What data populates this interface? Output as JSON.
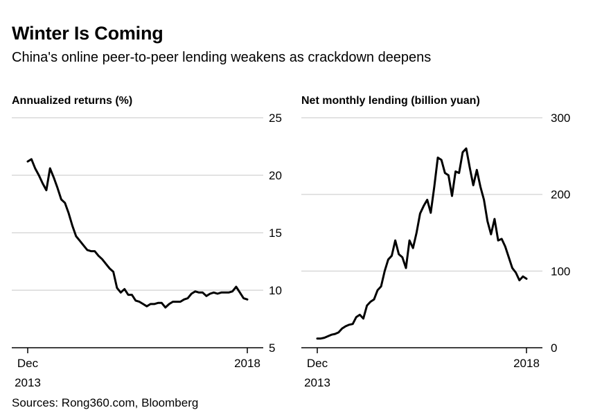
{
  "title": "Winter Is Coming",
  "subtitle": "China's online peer-to-peer lending weakens as crackdown deepens",
  "source": "Sources: Rong360.com, Bloomberg",
  "colors": {
    "line": "#000000",
    "grid": "#d9d9d9",
    "axis": "#000000",
    "text": "#000000",
    "background": "#ffffff"
  },
  "chart_data": [
    {
      "type": "line",
      "title": "Annualized returns (%)",
      "xlabel": "",
      "ylabel": "",
      "x_start": 2013.917,
      "x_end": 2018.0,
      "xlim": [
        2013.917,
        2018.25
      ],
      "ylim": [
        5,
        25
      ],
      "yticks": [
        5,
        10,
        15,
        20,
        25
      ],
      "grid": true,
      "xtick_labels": [
        {
          "x": 2013.917,
          "line1": "Dec",
          "line2": "2013"
        },
        {
          "x": 2018.0,
          "line1": "2018",
          "line2": ""
        }
      ],
      "values": [
        21.2,
        21.4,
        20.6,
        20.0,
        19.3,
        18.7,
        20.6,
        19.8,
        18.9,
        17.9,
        17.6,
        16.7,
        15.6,
        14.7,
        14.3,
        13.9,
        13.5,
        13.4,
        13.4,
        13.0,
        12.7,
        12.3,
        11.9,
        11.6,
        10.2,
        9.8,
        10.1,
        9.6,
        9.6,
        9.1,
        9.0,
        8.8,
        8.6,
        8.8,
        8.8,
        8.9,
        8.9,
        8.5,
        8.8,
        9.0,
        9.0,
        9.0,
        9.2,
        9.3,
        9.7,
        9.9,
        9.8,
        9.8,
        9.5,
        9.7,
        9.8,
        9.7,
        9.8,
        9.8,
        9.8,
        9.9,
        10.3,
        9.8,
        9.3,
        9.2
      ]
    },
    {
      "type": "line",
      "title": "Net monthly lending (billion yuan)",
      "xlabel": "",
      "ylabel": "",
      "x_start": 2013.917,
      "x_end": 2018.0,
      "xlim": [
        2013.917,
        2018.25
      ],
      "ylim": [
        0,
        300
      ],
      "yticks": [
        0,
        100,
        200,
        300
      ],
      "grid": true,
      "xtick_labels": [
        {
          "x": 2013.917,
          "line1": "Dec",
          "line2": "2013"
        },
        {
          "x": 2018.0,
          "line1": "2018",
          "line2": ""
        }
      ],
      "values": [
        12,
        12,
        13,
        15,
        17,
        18,
        20,
        25,
        28,
        30,
        31,
        40,
        43,
        38,
        55,
        60,
        63,
        75,
        80,
        100,
        115,
        120,
        140,
        122,
        118,
        104,
        140,
        130,
        150,
        175,
        185,
        193,
        176,
        210,
        248,
        245,
        228,
        225,
        198,
        230,
        228,
        255,
        260,
        235,
        212,
        232,
        210,
        193,
        165,
        148,
        168,
        140,
        142,
        132,
        118,
        104,
        98,
        88,
        93,
        90
      ]
    }
  ]
}
